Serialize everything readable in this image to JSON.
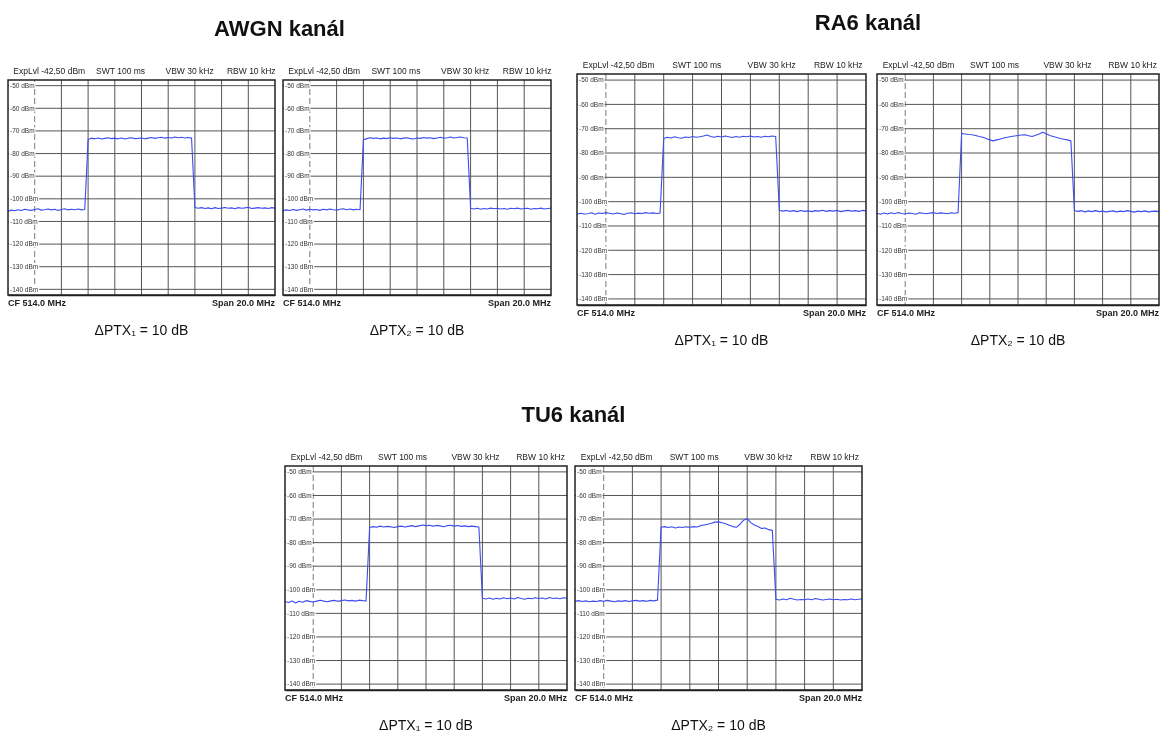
{
  "chart_data": [
    {
      "type": "line",
      "title": "AWGN kanál",
      "xlabel": "ΔPTX₁ = 10 dB",
      "annotations": [
        "ExpLvl -42,50 dBm",
        "SWT 100 ms",
        "VBW 30 kHz",
        "RBW 10 kHz",
        "CF 514.0 MHz",
        "Span 20.0 MHz"
      ],
      "categories": [
        null,
        null,
        null,
        null,
        null,
        null,
        null,
        null,
        null,
        null,
        null,
        null,
        null,
        null,
        null,
        null,
        null,
        null,
        null,
        null,
        null,
        null,
        null,
        null,
        null,
        null,
        null,
        null,
        null,
        null,
        null,
        null,
        null,
        null,
        null,
        null,
        null,
        null,
        null,
        null,
        null,
        null,
        null,
        null,
        null,
        null,
        null,
        null,
        null,
        null,
        null,
        null,
        null,
        null,
        null,
        null,
        null,
        null,
        null,
        null,
        null,
        null,
        null,
        null,
        null,
        null,
        null,
        null,
        null,
        null,
        null,
        null,
        null,
        null,
        null,
        null,
        null,
        null,
        null,
        null,
        null
      ],
      "ylim": [
        -142.5,
        -47.5
      ],
      "yticks": [
        {
          "value": -50,
          "label": "-50 dBm"
        },
        {
          "value": -60,
          "label": "-60 dBm"
        },
        {
          "value": -70,
          "label": "-70 dBm"
        },
        {
          "value": -80,
          "label": "-80 dBm"
        },
        {
          "value": -90,
          "label": "-90 dBm"
        },
        {
          "value": -100,
          "label": "-100 dBm"
        },
        {
          "value": -110,
          "label": "-110 dBm"
        },
        {
          "value": -120,
          "label": "-120 dBm"
        },
        {
          "value": -130,
          "label": "-130 dBm"
        },
        {
          "value": -140,
          "label": "-140 dBm"
        }
      ],
      "tick_labels": "y",
      "grid": true,
      "series": [
        {
          "color": "#3c4cf0",
          "values": [
            -105.5,
            -105.0,
            -105.3,
            -104.8,
            -105.2,
            -104.6,
            -104.9,
            -105.1,
            -104.7,
            -104.4,
            -105.0,
            -104.8,
            -104.5,
            -104.9,
            -104.6,
            -105.2,
            -104.7,
            -104.4,
            -104.9,
            -104.6,
            -104.8,
            -104.5,
            -104.9,
            -104.7,
            -73.8,
            -73.2,
            -73.5,
            -73.1,
            -73.6,
            -73.3,
            -73.0,
            -73.4,
            -73.2,
            -73.5,
            -73.1,
            -73.6,
            -73.2,
            -73.0,
            -73.4,
            -73.3,
            -73.1,
            -73.5,
            -73.2,
            -72.9,
            -73.3,
            -73.0,
            -72.8,
            -73.2,
            -72.9,
            -73.1,
            -72.7,
            -73.0,
            -72.8,
            -73.1,
            -72.9,
            -73.2,
            -103.8,
            -104.2,
            -103.9,
            -104.3,
            -104.0,
            -104.4,
            -103.9,
            -104.3,
            -104.1,
            -103.8,
            -104.2,
            -104.0,
            -104.4,
            -103.9,
            -104.2,
            -104.0,
            -103.7,
            -104.3,
            -104.1,
            -103.9,
            -104.2,
            -104.0,
            -104.3,
            -103.9,
            -104.1
          ]
        }
      ]
    },
    {
      "type": "line",
      "xlabel": "ΔPTX₂ = 10 dB",
      "annotations": [
        "ExpLvl -42,50 dBm",
        "SWT 100 ms",
        "VBW 30 kHz",
        "RBW 10 kHz",
        "CF 514.0 MHz",
        "Span 20.0 MHz"
      ],
      "categories": [
        null,
        null,
        null,
        null,
        null,
        null,
        null,
        null,
        null,
        null,
        null,
        null,
        null,
        null,
        null,
        null,
        null,
        null,
        null,
        null,
        null,
        null,
        null,
        null,
        null,
        null,
        null,
        null,
        null,
        null,
        null,
        null,
        null,
        null,
        null,
        null,
        null,
        null,
        null,
        null,
        null,
        null,
        null,
        null,
        null,
        null,
        null,
        null,
        null,
        null,
        null,
        null,
        null,
        null,
        null,
        null,
        null,
        null,
        null,
        null,
        null,
        null,
        null,
        null,
        null,
        null,
        null,
        null,
        null,
        null,
        null,
        null,
        null,
        null,
        null,
        null,
        null,
        null,
        null,
        null,
        null
      ],
      "ylim": [
        -142.5,
        -47.5
      ],
      "yticks": [
        {
          "value": -50,
          "label": "-50 dBm"
        },
        {
          "value": -60,
          "label": "-60 dBm"
        },
        {
          "value": -70,
          "label": "-70 dBm"
        },
        {
          "value": -80,
          "label": "-80 dBm"
        },
        {
          "value": -90,
          "label": "-90 dBm"
        },
        {
          "value": -100,
          "label": "-100 dBm"
        },
        {
          "value": -110,
          "label": "-110 dBm"
        },
        {
          "value": -120,
          "label": "-120 dBm"
        },
        {
          "value": -130,
          "label": "-130 dBm"
        },
        {
          "value": -140,
          "label": "-140 dBm"
        }
      ],
      "tick_labels": "y",
      "grid": true,
      "series": [
        {
          "color": "#3c4cf0",
          "values": [
            -105.3,
            -104.9,
            -105.2,
            -104.7,
            -105.1,
            -104.8,
            -104.5,
            -105.0,
            -104.6,
            -104.9,
            -104.7,
            -105.1,
            -104.6,
            -104.9,
            -104.5,
            -104.8,
            -105.0,
            -104.6,
            -104.4,
            -104.8,
            -104.5,
            -104.9,
            -104.6,
            -104.8,
            -73.9,
            -73.4,
            -73.0,
            -73.3,
            -73.1,
            -73.5,
            -73.2,
            -73.4,
            -73.0,
            -73.3,
            -73.1,
            -73.5,
            -73.2,
            -73.0,
            -73.4,
            -73.6,
            -73.1,
            -73.3,
            -72.9,
            -73.2,
            -73.0,
            -73.4,
            -73.1,
            -72.8,
            -73.2,
            -73.0,
            -72.7,
            -73.1,
            -72.9,
            -72.7,
            -73.0,
            -73.1,
            -104.2,
            -104.5,
            -104.2,
            -104.6,
            -104.3,
            -104.5,
            -104.1,
            -104.4,
            -104.2,
            -104.5,
            -104.3,
            -104.6,
            -104.2,
            -104.4,
            -104.1,
            -104.5,
            -104.3,
            -104.2,
            -104.6,
            -104.3,
            -104.4,
            -104.1,
            -104.5,
            -104.3,
            -104.2
          ]
        }
      ]
    },
    {
      "type": "line",
      "title": "RA6 kanál",
      "xlabel": "ΔPTX₁ = 10 dB",
      "annotations": [
        "ExpLvl -42,50 dBm",
        "SWT 100 ms",
        "VBW 30 kHz",
        "RBW 10 kHz",
        "CF 514.0 MHz",
        "Span 20.0 MHz"
      ],
      "categories": [
        null,
        null,
        null,
        null,
        null,
        null,
        null,
        null,
        null,
        null,
        null,
        null,
        null,
        null,
        null,
        null,
        null,
        null,
        null,
        null,
        null,
        null,
        null,
        null,
        null,
        null,
        null,
        null,
        null,
        null,
        null,
        null,
        null,
        null,
        null,
        null,
        null,
        null,
        null,
        null,
        null,
        null,
        null,
        null,
        null,
        null,
        null,
        null,
        null,
        null,
        null,
        null,
        null,
        null,
        null,
        null,
        null,
        null,
        null,
        null,
        null,
        null,
        null,
        null,
        null,
        null,
        null,
        null,
        null,
        null,
        null,
        null,
        null,
        null,
        null,
        null,
        null,
        null,
        null,
        null,
        null
      ],
      "ylim": [
        -142.5,
        -47.5
      ],
      "yticks": [
        {
          "value": -50,
          "label": "-50 dBm"
        },
        {
          "value": -60,
          "label": "-60 dBm"
        },
        {
          "value": -70,
          "label": "-70 dBm"
        },
        {
          "value": -80,
          "label": "-80 dBm"
        },
        {
          "value": -90,
          "label": "-90 dBm"
        },
        {
          "value": -100,
          "label": "-100 dBm"
        },
        {
          "value": -110,
          "label": "-110 dBm"
        },
        {
          "value": -120,
          "label": "-120 dBm"
        },
        {
          "value": -130,
          "label": "-130 dBm"
        },
        {
          "value": -140,
          "label": "-140 dBm"
        }
      ],
      "tick_labels": "y",
      "grid": true,
      "series": [
        {
          "color": "#3c4cf0",
          "values": [
            -105.2,
            -104.8,
            -105.1,
            -105.0,
            -104.6,
            -105.2,
            -104.7,
            -104.9,
            -104.5,
            -104.8,
            -105.1,
            -104.7,
            -104.9,
            -105.3,
            -104.8,
            -104.6,
            -105.0,
            -104.7,
            -104.9,
            -104.5,
            -104.8,
            -104.6,
            -104.9,
            -104.7,
            -74.0,
            -73.5,
            -73.8,
            -73.3,
            -73.7,
            -73.9,
            -73.4,
            -73.6,
            -73.2,
            -73.5,
            -73.3,
            -73.0,
            -72.6,
            -73.2,
            -73.5,
            -73.1,
            -73.4,
            -73.0,
            -73.3,
            -73.6,
            -73.2,
            -73.5,
            -73.1,
            -73.3,
            -73.0,
            -73.4,
            -73.2,
            -73.5,
            -73.1,
            -73.3,
            -73.0,
            -73.2,
            -103.5,
            -103.9,
            -103.6,
            -104.0,
            -103.7,
            -104.1,
            -103.6,
            -104.0,
            -103.8,
            -104.1,
            -103.7,
            -103.9,
            -103.5,
            -104.0,
            -103.7,
            -103.9,
            -103.6,
            -104.1,
            -103.8,
            -103.6,
            -103.9,
            -103.7,
            -104.0,
            -103.6,
            -103.8
          ]
        }
      ]
    },
    {
      "type": "line",
      "xlabel": "ΔPTX₂ = 10 dB",
      "annotations": [
        "ExpLvl -42,50 dBm",
        "SWT 100 ms",
        "VBW 30 kHz",
        "RBW 10 kHz",
        "CF 514.0 MHz",
        "Span 20.0 MHz"
      ],
      "categories": [
        null,
        null,
        null,
        null,
        null,
        null,
        null,
        null,
        null,
        null,
        null,
        null,
        null,
        null,
        null,
        null,
        null,
        null,
        null,
        null,
        null,
        null,
        null,
        null,
        null,
        null,
        null,
        null,
        null,
        null,
        null,
        null,
        null,
        null,
        null,
        null,
        null,
        null,
        null,
        null,
        null,
        null,
        null,
        null,
        null,
        null,
        null,
        null,
        null,
        null,
        null,
        null,
        null,
        null,
        null,
        null,
        null,
        null,
        null,
        null,
        null,
        null,
        null,
        null,
        null,
        null,
        null,
        null,
        null,
        null,
        null,
        null,
        null,
        null,
        null,
        null,
        null,
        null,
        null,
        null,
        null
      ],
      "ylim": [
        -142.5,
        -47.5
      ],
      "yticks": [
        {
          "value": -50,
          "label": "-50 dBm"
        },
        {
          "value": -60,
          "label": "-60 dBm"
        },
        {
          "value": -70,
          "label": "-70 dBm"
        },
        {
          "value": -80,
          "label": "-80 dBm"
        },
        {
          "value": -90,
          "label": "-90 dBm"
        },
        {
          "value": -100,
          "label": "-100 dBm"
        },
        {
          "value": -110,
          "label": "-110 dBm"
        },
        {
          "value": -120,
          "label": "-120 dBm"
        },
        {
          "value": -130,
          "label": "-130 dBm"
        },
        {
          "value": -140,
          "label": "-140 dBm"
        }
      ],
      "tick_labels": "y",
      "grid": true,
      "series": [
        {
          "color": "#3c4cf0",
          "values": [
            -104.8,
            -105.2,
            -104.7,
            -105.1,
            -104.6,
            -105.0,
            -104.5,
            -104.9,
            -105.1,
            -104.7,
            -104.9,
            -105.2,
            -104.6,
            -104.8,
            -105.0,
            -104.7,
            -104.5,
            -104.9,
            -104.6,
            -104.8,
            -105.0,
            -104.6,
            -104.8,
            -104.5,
            -72.0,
            -72.2,
            -72.4,
            -72.5,
            -72.8,
            -73.2,
            -73.5,
            -74.0,
            -74.6,
            -75.0,
            -74.6,
            -74.2,
            -73.8,
            -73.5,
            -73.2,
            -73.0,
            -72.8,
            -72.6,
            -72.5,
            -72.9,
            -73.2,
            -72.7,
            -72.2,
            -71.5,
            -72.1,
            -72.8,
            -73.2,
            -73.6,
            -74.0,
            -74.3,
            -74.6,
            -75.0,
            -103.6,
            -104.0,
            -103.7,
            -104.2,
            -103.8,
            -104.1,
            -103.7,
            -104.1,
            -103.9,
            -104.2,
            -104.0,
            -103.8,
            -104.2,
            -103.9,
            -104.1,
            -103.7,
            -104.0,
            -104.3,
            -103.9,
            -104.1,
            -103.8,
            -104.2,
            -104.0,
            -103.9,
            -104.1
          ]
        }
      ]
    },
    {
      "type": "line",
      "title": "TU6 kanál",
      "xlabel": "ΔPTX₁ = 10 dB",
      "annotations": [
        "ExpLvl -42,50 dBm",
        "SWT 100 ms",
        "VBW 30 kHz",
        "RBW 10 kHz",
        "CF 514.0 MHz",
        "Span 20.0 MHz"
      ],
      "categories": [
        null,
        null,
        null,
        null,
        null,
        null,
        null,
        null,
        null,
        null,
        null,
        null,
        null,
        null,
        null,
        null,
        null,
        null,
        null,
        null,
        null,
        null,
        null,
        null,
        null,
        null,
        null,
        null,
        null,
        null,
        null,
        null,
        null,
        null,
        null,
        null,
        null,
        null,
        null,
        null,
        null,
        null,
        null,
        null,
        null,
        null,
        null,
        null,
        null,
        null,
        null,
        null,
        null,
        null,
        null,
        null,
        null,
        null,
        null,
        null,
        null,
        null,
        null,
        null,
        null,
        null,
        null,
        null,
        null,
        null,
        null,
        null,
        null,
        null,
        null,
        null,
        null,
        null,
        null,
        null,
        null
      ],
      "ylim": [
        -142.5,
        -47.5
      ],
      "yticks": [
        {
          "value": -50,
          "label": "-50 dBm"
        },
        {
          "value": -60,
          "label": "-60 dBm"
        },
        {
          "value": -70,
          "label": "-70 dBm"
        },
        {
          "value": -80,
          "label": "-80 dBm"
        },
        {
          "value": -90,
          "label": "-90 dBm"
        },
        {
          "value": -100,
          "label": "-100 dBm"
        },
        {
          "value": -110,
          "label": "-110 dBm"
        },
        {
          "value": -120,
          "label": "-120 dBm"
        },
        {
          "value": -130,
          "label": "-130 dBm"
        },
        {
          "value": -140,
          "label": "-140 dBm"
        }
      ],
      "tick_labels": "y",
      "grid": true,
      "series": [
        {
          "color": "#3c4cf0",
          "values": [
            -105.0,
            -105.4,
            -104.8,
            -105.6,
            -104.9,
            -105.3,
            -104.6,
            -104.9,
            -105.2,
            -104.8,
            -104.4,
            -104.8,
            -105.1,
            -104.7,
            -104.5,
            -104.9,
            -104.6,
            -104.3,
            -104.7,
            -104.5,
            -104.8,
            -104.4,
            -104.6,
            -104.7,
            -73.6,
            -73.2,
            -73.5,
            -73.0,
            -73.4,
            -73.1,
            -73.3,
            -73.6,
            -73.2,
            -73.0,
            -73.4,
            -73.1,
            -72.8,
            -73.2,
            -72.9,
            -72.5,
            -72.8,
            -72.6,
            -73.0,
            -72.7,
            -72.9,
            -73.3,
            -72.8,
            -72.6,
            -73.0,
            -72.7,
            -73.1,
            -72.9,
            -73.2,
            -73.0,
            -73.2,
            -73.4,
            -103.6,
            -103.9,
            -103.5,
            -104.0,
            -103.6,
            -103.9,
            -103.4,
            -103.8,
            -103.5,
            -103.9,
            -103.3,
            -103.7,
            -104.0,
            -103.6,
            -103.8,
            -103.4,
            -103.7,
            -103.5,
            -103.9,
            -103.3,
            -103.7,
            -103.5,
            -103.8,
            -103.4,
            -103.6
          ]
        }
      ]
    },
    {
      "type": "line",
      "xlabel": "ΔPTX₂ = 10 dB",
      "annotations": [
        "ExpLvl -42,50 dBm",
        "SWT 100 ms",
        "VBW 30 kHz",
        "RBW 10 kHz",
        "CF 514.0 MHz",
        "Span 20.0 MHz"
      ],
      "categories": [
        null,
        null,
        null,
        null,
        null,
        null,
        null,
        null,
        null,
        null,
        null,
        null,
        null,
        null,
        null,
        null,
        null,
        null,
        null,
        null,
        null,
        null,
        null,
        null,
        null,
        null,
        null,
        null,
        null,
        null,
        null,
        null,
        null,
        null,
        null,
        null,
        null,
        null,
        null,
        null,
        null,
        null,
        null,
        null,
        null,
        null,
        null,
        null,
        null,
        null,
        null,
        null,
        null,
        null,
        null,
        null,
        null,
        null,
        null,
        null,
        null,
        null,
        null,
        null,
        null,
        null,
        null,
        null,
        null,
        null,
        null,
        null,
        null,
        null,
        null,
        null,
        null,
        null,
        null,
        null,
        null
      ],
      "ylim": [
        -142.5,
        -47.5
      ],
      "yticks": [
        {
          "value": -50,
          "label": "-50 dBm"
        },
        {
          "value": -60,
          "label": "-60 dBm"
        },
        {
          "value": -70,
          "label": "-70 dBm"
        },
        {
          "value": -80,
          "label": "-80 dBm"
        },
        {
          "value": -90,
          "label": "-90 dBm"
        },
        {
          "value": -100,
          "label": "-100 dBm"
        },
        {
          "value": -110,
          "label": "-110 dBm"
        },
        {
          "value": -120,
          "label": "-120 dBm"
        },
        {
          "value": -130,
          "label": "-130 dBm"
        },
        {
          "value": -140,
          "label": "-140 dBm"
        }
      ],
      "tick_labels": "y",
      "grid": true,
      "series": [
        {
          "color": "#3c4cf0",
          "values": [
            -104.9,
            -104.6,
            -105.0,
            -104.7,
            -105.1,
            -104.8,
            -105.0,
            -104.6,
            -104.9,
            -104.5,
            -104.8,
            -105.1,
            -104.7,
            -104.9,
            -104.6,
            -105.0,
            -104.7,
            -104.5,
            -104.8,
            -104.6,
            -104.9,
            -104.5,
            -104.7,
            -104.4,
            -73.5,
            -73.2,
            -73.6,
            -73.3,
            -73.8,
            -73.4,
            -73.6,
            -73.3,
            -73.5,
            -73.2,
            -73.4,
            -72.8,
            -72.5,
            -72.2,
            -71.8,
            -71.3,
            -71.2,
            -71.6,
            -72.0,
            -72.6,
            -73.2,
            -73.5,
            -72.2,
            -70.5,
            -69.8,
            -71.5,
            -72.5,
            -73.2,
            -74.0,
            -73.8,
            -74.5,
            -74.8,
            -104.0,
            -104.3,
            -103.9,
            -104.2,
            -103.6,
            -104.0,
            -104.3,
            -104.1,
            -104.2,
            -103.9,
            -104.2,
            -103.7,
            -104.0,
            -104.3,
            -104.1,
            -103.9,
            -104.2,
            -104.0,
            -104.3,
            -104.1,
            -104.2,
            -103.9,
            -104.2,
            -104.0,
            -103.9
          ]
        }
      ]
    }
  ]
}
